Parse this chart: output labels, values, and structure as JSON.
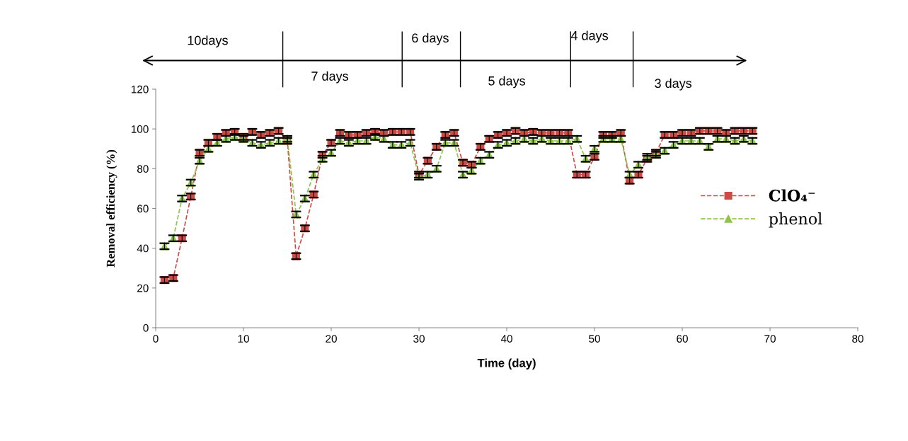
{
  "chart_data": {
    "type": "line",
    "xlabel": "Time (day)",
    "ylabel": "Removal efficiency (%)",
    "x": [
      1,
      2,
      3,
      4,
      5,
      6,
      7,
      8,
      9,
      10,
      11,
      12,
      13,
      14,
      15,
      16,
      17,
      18,
      19,
      20,
      21,
      22,
      23,
      24,
      25,
      26,
      27,
      28,
      29,
      30,
      31,
      32,
      33,
      34,
      35,
      36,
      37,
      38,
      39,
      40,
      41,
      42,
      43,
      44,
      45,
      46,
      47,
      48,
      49,
      50,
      51,
      52,
      53,
      54,
      55,
      56,
      57,
      58,
      59,
      60,
      61,
      62,
      63,
      64,
      65,
      66,
      67,
      68
    ],
    "series": [
      {
        "name": "ClO₄⁻",
        "color": "#d04a45",
        "marker": "square",
        "values": [
          24,
          25,
          45,
          66,
          88,
          93,
          96,
          98,
          98.5,
          96,
          98.5,
          97,
          98,
          99,
          94,
          36,
          50,
          67,
          87,
          93,
          98,
          97,
          97,
          98,
          98.5,
          98,
          98.5,
          98.5,
          98.5,
          77,
          84,
          91,
          97,
          98,
          83,
          82,
          91,
          95,
          97,
          98,
          99,
          98,
          98.5,
          98,
          98,
          98,
          98,
          77,
          77,
          86,
          97,
          97,
          98,
          74,
          77,
          85,
          88,
          97,
          97,
          98,
          98,
          99,
          99,
          99,
          98,
          99,
          99,
          99
        ],
        "errors": [
          1.5,
          1.5,
          1.5,
          1.5,
          1.5,
          1.5,
          1.5,
          1.5,
          1.5,
          1.5,
          1.5,
          1.5,
          1.5,
          1.5,
          1.5,
          1.5,
          1.5,
          1.5,
          1.5,
          1.5,
          1.5,
          1.5,
          1.5,
          1.5,
          1.5,
          1.5,
          1.5,
          1.5,
          1.5,
          1.5,
          1.5,
          1.5,
          1.5,
          1.5,
          1.5,
          1.5,
          1.5,
          1.5,
          1.5,
          1.5,
          1.5,
          1.5,
          1.5,
          1.5,
          1.5,
          1.5,
          1.5,
          1.5,
          1.5,
          1.5,
          1.5,
          1.5,
          1.5,
          1.5,
          1.5,
          1.5,
          1.5,
          1.5,
          1.5,
          1.5,
          1.5,
          1.5,
          1.5,
          1.5,
          1.5,
          1.5,
          1.5,
          1.5
        ]
      },
      {
        "name": "phenol",
        "color": "#8dc44a",
        "marker": "triangle",
        "values": [
          41,
          45,
          65,
          73,
          84,
          90,
          93,
          95,
          96,
          95,
          93,
          92,
          93,
          94,
          95,
          57,
          65,
          77,
          85,
          88,
          94,
          93,
          94,
          94,
          96,
          95,
          92,
          92,
          93,
          76,
          77,
          80,
          93,
          93,
          77,
          79,
          84,
          87,
          92,
          93,
          94,
          95,
          94,
          95,
          94,
          94,
          94,
          95,
          85,
          90,
          95,
          95,
          95,
          77,
          82,
          86,
          87,
          89,
          92,
          94,
          94,
          94,
          91,
          95,
          95,
          94,
          95,
          94
        ],
        "errors": [
          1.5,
          1.5,
          1.5,
          1.5,
          1.5,
          1.5,
          1.5,
          1.5,
          1.5,
          1.5,
          1.5,
          1.5,
          1.5,
          1.5,
          1.5,
          1.5,
          1.5,
          1.5,
          1.5,
          1.5,
          1.5,
          1.5,
          1.5,
          1.5,
          1.5,
          1.5,
          1.5,
          1.5,
          1.5,
          1.5,
          1.5,
          1.5,
          1.5,
          1.5,
          1.5,
          1.5,
          1.5,
          1.5,
          1.5,
          1.5,
          1.5,
          1.5,
          1.5,
          1.5,
          1.5,
          1.5,
          1.5,
          1.5,
          1.5,
          1.5,
          1.5,
          1.5,
          1.5,
          1.5,
          1.5,
          1.5,
          1.5,
          1.5,
          1.5,
          1.5,
          1.5,
          1.5,
          1.5,
          1.5,
          1.5,
          1.5,
          1.5,
          1.5
        ]
      }
    ],
    "xlim": [
      0,
      80
    ],
    "xticks": [
      0,
      10,
      20,
      30,
      40,
      50,
      60,
      70,
      80
    ],
    "ylim": [
      0,
      120
    ],
    "yticks": [
      0,
      20,
      40,
      60,
      80,
      100,
      120
    ],
    "line_style": "dashed",
    "grid": false,
    "legend": "right",
    "annotations": [
      "10days",
      "7 days",
      "6 days",
      "5 days",
      "4 days",
      "3 days"
    ]
  }
}
